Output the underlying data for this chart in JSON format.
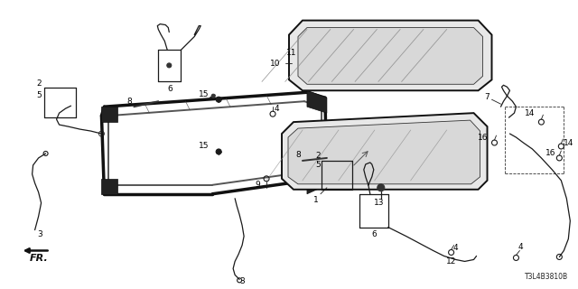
{
  "bg_color": "#ffffff",
  "watermark": "T3L4B3810B",
  "line_color": "#1a1a1a",
  "text_color": "#000000",
  "label_fontsize": 6.5,
  "figsize": [
    6.4,
    3.2
  ],
  "dpi": 100
}
